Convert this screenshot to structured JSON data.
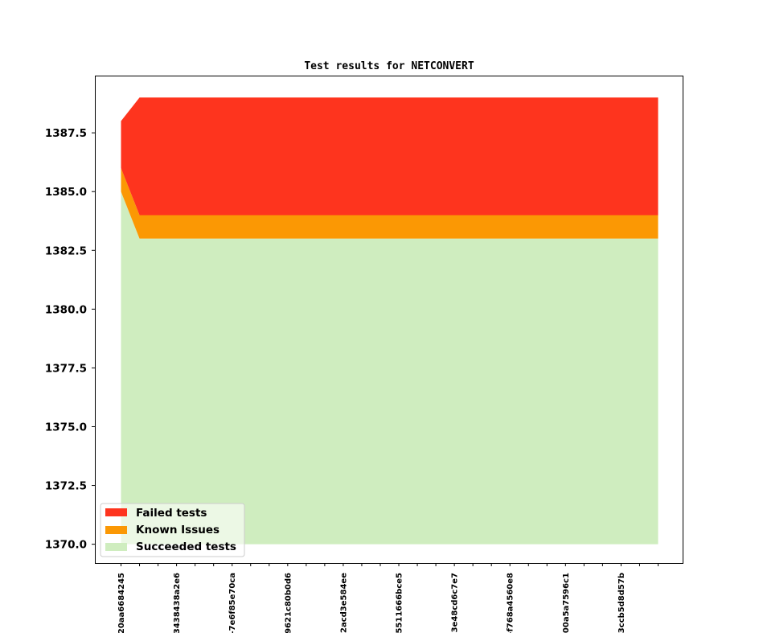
{
  "chart_data": {
    "type": "area",
    "stacked": true,
    "title": "Test results for NETCONVERT",
    "xlabel": "",
    "ylabel": "",
    "ylim": [
      1369.2,
      1389.9
    ],
    "yticks": [
      1370.0,
      1372.5,
      1375.0,
      1377.5,
      1380.0,
      1382.5,
      1385.0,
      1387.5
    ],
    "ytick_labels": [
      "1370.0",
      "1372.5",
      "1375.0",
      "1377.5",
      "1380.0",
      "1382.5",
      "1385.0",
      "1387.5"
    ],
    "x_count": 30,
    "xtick_labels": [
      "20aa6684245",
      "3438438a2e6",
      "-7e6f85e70ca",
      "9621c80b0d6",
      "2acd3e584ee",
      "5511666bce5",
      "3e48cd6c7e7",
      "-f768a4560e8",
      "-00a5a7596c1",
      "3ccb5d8d57b"
    ],
    "xtick_label_every": 3,
    "baseline": 1370,
    "series": [
      {
        "name": "Succeeded tests",
        "color": "#cfedbf",
        "values": [
          1385,
          1383,
          1383,
          1383,
          1383,
          1383,
          1383,
          1383,
          1383,
          1383,
          1383,
          1383,
          1383,
          1383,
          1383,
          1383,
          1383,
          1383,
          1383,
          1383,
          1383,
          1383,
          1383,
          1383,
          1383,
          1383,
          1383,
          1383,
          1383,
          1383
        ]
      },
      {
        "name": "Known Issues",
        "color": "#fb9804",
        "values": [
          1386,
          1384,
          1384,
          1384,
          1384,
          1384,
          1384,
          1384,
          1384,
          1384,
          1384,
          1384,
          1384,
          1384,
          1384,
          1384,
          1384,
          1384,
          1384,
          1384,
          1384,
          1384,
          1384,
          1384,
          1384,
          1384,
          1384,
          1384,
          1384,
          1384
        ]
      },
      {
        "name": "Failed tests",
        "color": "#fe341e",
        "values": [
          1388,
          1389,
          1389,
          1389,
          1389,
          1389,
          1389,
          1389,
          1389,
          1389,
          1389,
          1389,
          1389,
          1389,
          1389,
          1389,
          1389,
          1389,
          1389,
          1389,
          1389,
          1389,
          1389,
          1389,
          1389,
          1389,
          1389,
          1389,
          1389,
          1389
        ]
      }
    ],
    "legend": {
      "position": "lower-left",
      "entries": [
        {
          "label": "Failed tests",
          "color": "#fe341e"
        },
        {
          "label": "Known Issues",
          "color": "#fb9804"
        },
        {
          "label": "Succeeded tests",
          "color": "#cfedbf"
        }
      ]
    }
  }
}
